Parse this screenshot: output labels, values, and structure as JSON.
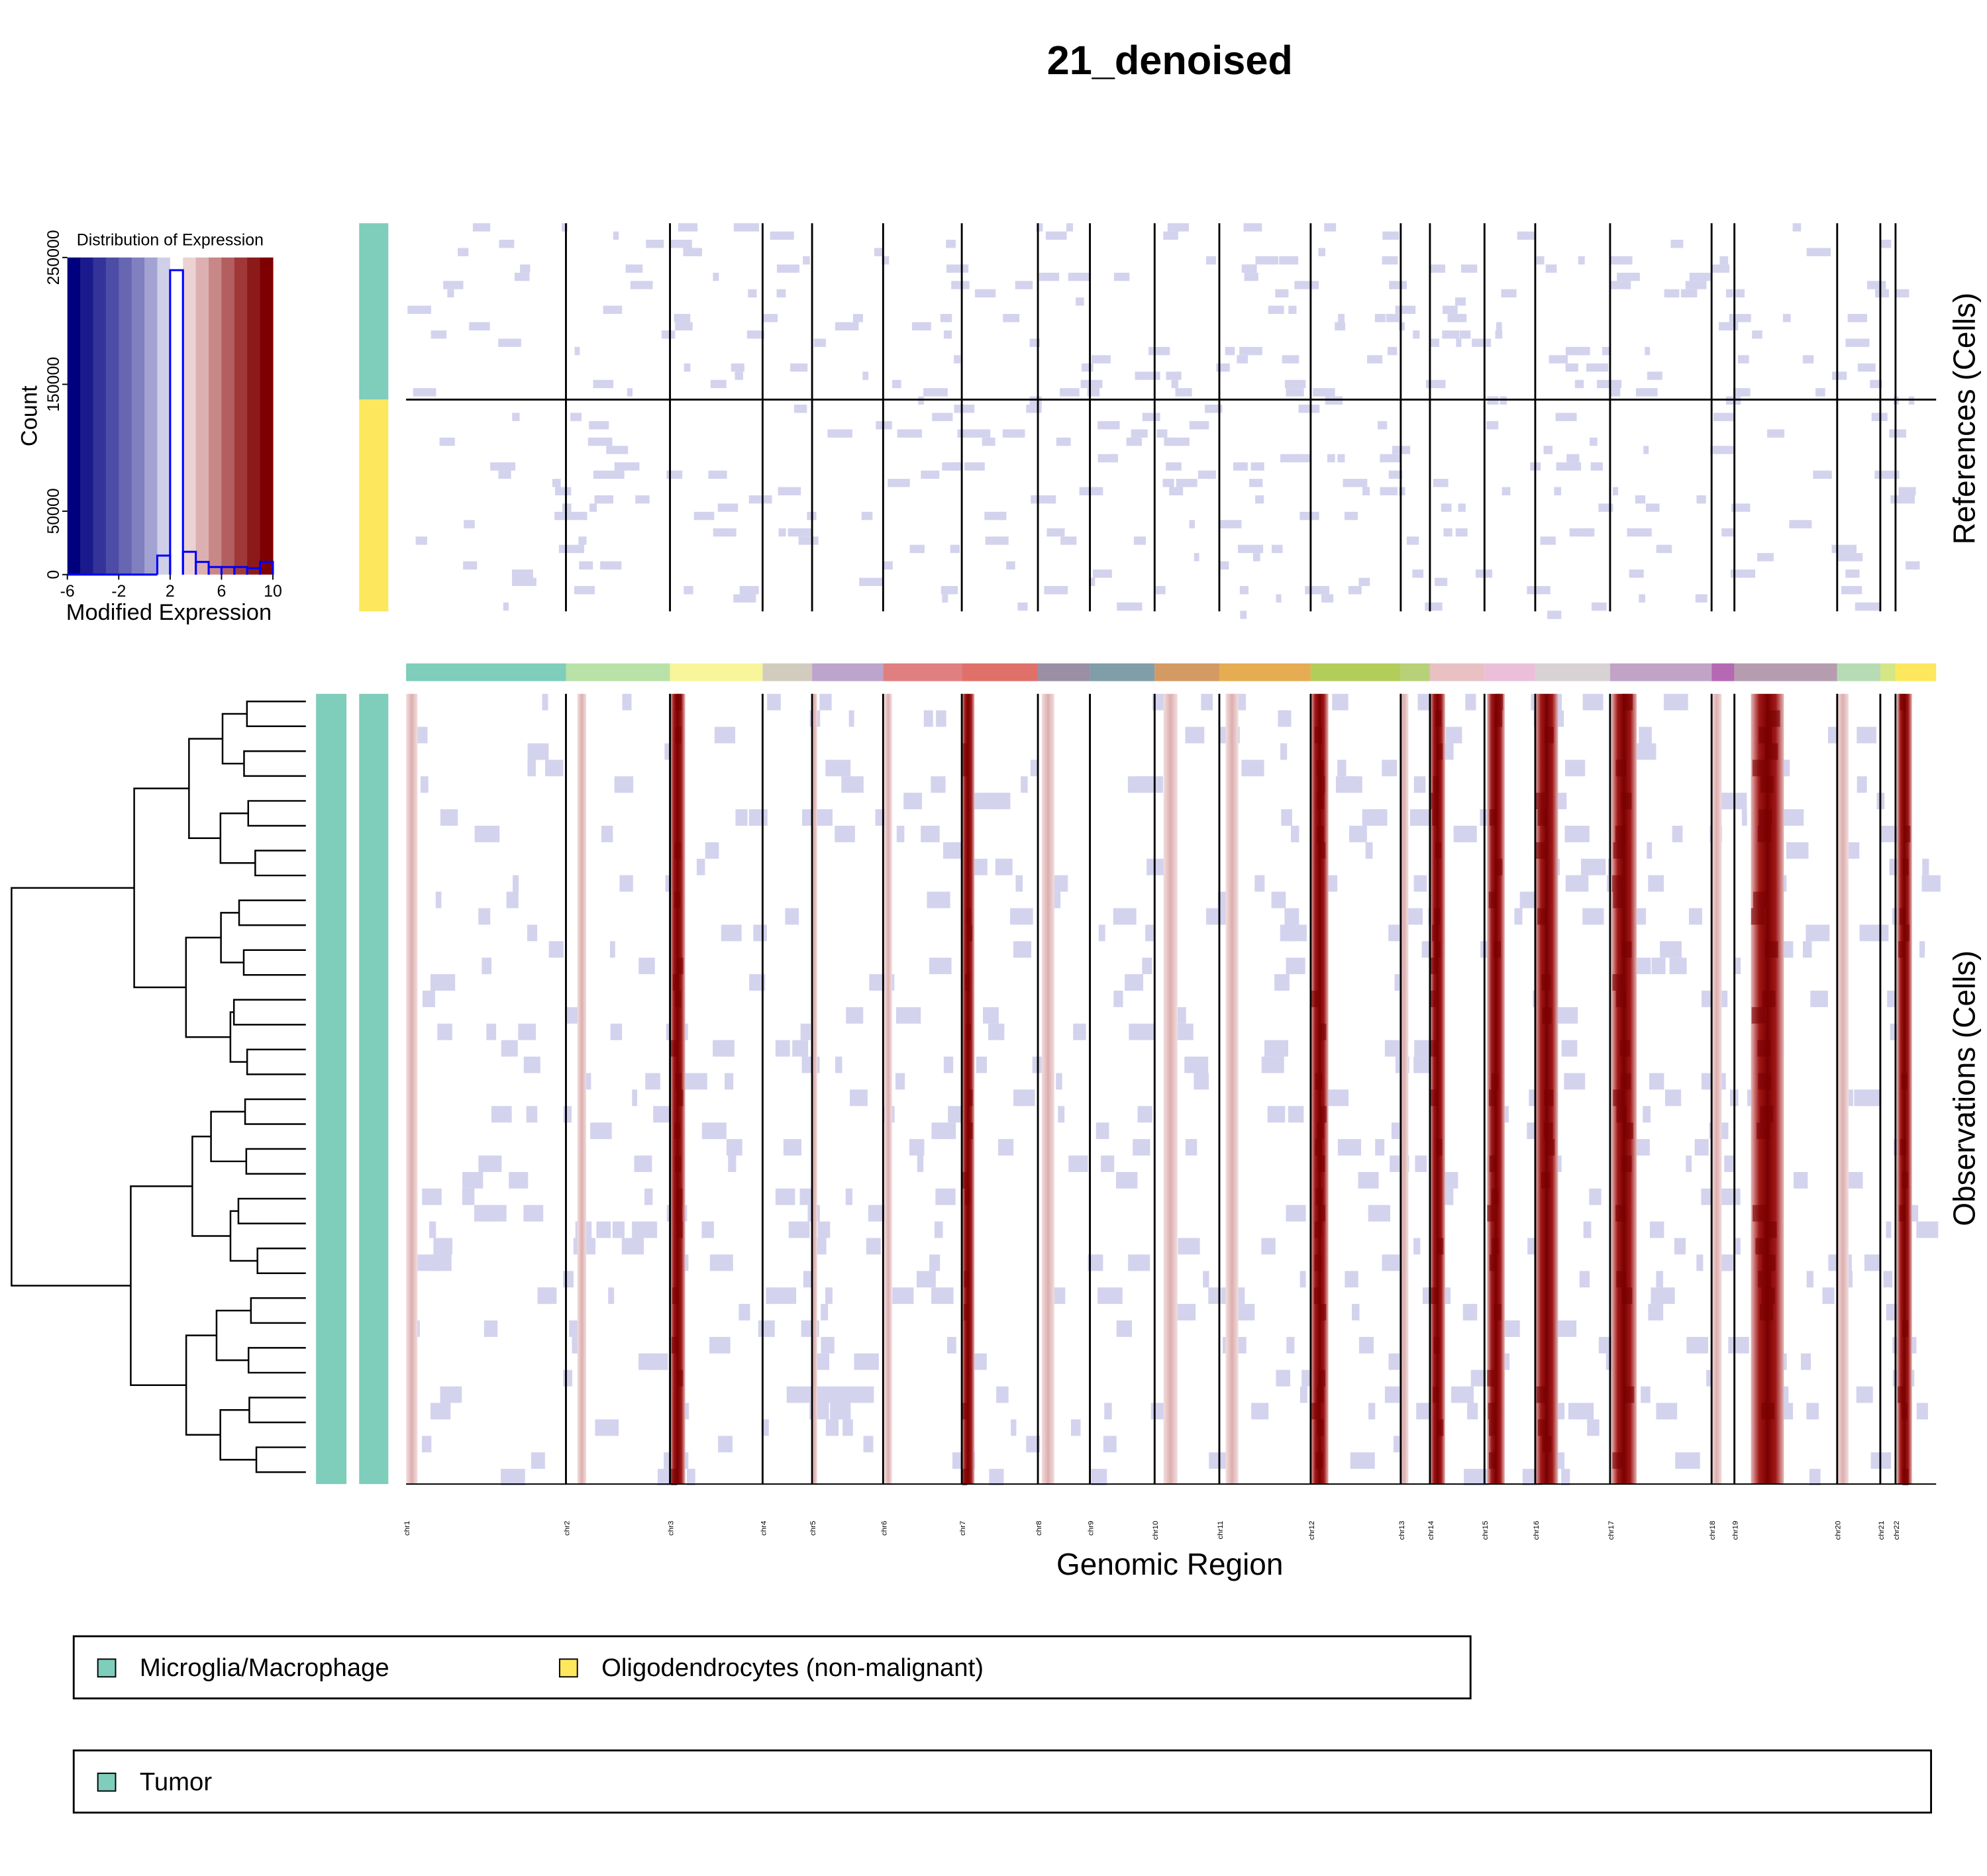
{
  "title": "21_denoised",
  "chart_data": {
    "type": "histogram",
    "title": "Distribution of Expression",
    "xlabel": "Modified Expression",
    "ylabel": "Count",
    "bins": [
      -6,
      -5,
      -4,
      -3,
      -2,
      -1,
      0,
      1,
      2,
      3,
      4,
      5,
      6,
      7,
      8,
      9,
      10
    ],
    "values": [
      0,
      0,
      0,
      0,
      0,
      0,
      0,
      15000,
      240000,
      18000,
      10000,
      6000,
      6000,
      6000,
      5000,
      10000
    ],
    "color": "#0000ff",
    "xlim": [
      -6,
      10
    ],
    "ylim": [
      0,
      250000
    ],
    "xticks": [
      -6,
      -2,
      2,
      6,
      10
    ],
    "yticks": [
      0,
      50000,
      150000,
      250000
    ]
  },
  "heatmap": {
    "chromosomes": [
      "chr1",
      "chr2",
      "chr3",
      "chr4",
      "chr5",
      "chr6",
      "chr7",
      "chr8",
      "chr9",
      "chr10",
      "chr11",
      "chr12",
      "chr13",
      "chr14",
      "chr15",
      "chr16",
      "chr17",
      "chr18",
      "chr19",
      "chr20",
      "chr21",
      "chr22"
    ],
    "xlabel": "Genomic Region",
    "references_label": "References (Cells)",
    "observations_label": "Observations (Cells)"
  },
  "legends": [
    {
      "items": [
        {
          "name": "Microglia/Macrophage",
          "color": "#7fcdbb"
        },
        {
          "name": "Oligodendrocytes (non-malignant)",
          "color": "#fde75c"
        }
      ]
    },
    {
      "items": [
        {
          "name": "Tumor",
          "color": "#7fcdbb"
        }
      ]
    }
  ]
}
